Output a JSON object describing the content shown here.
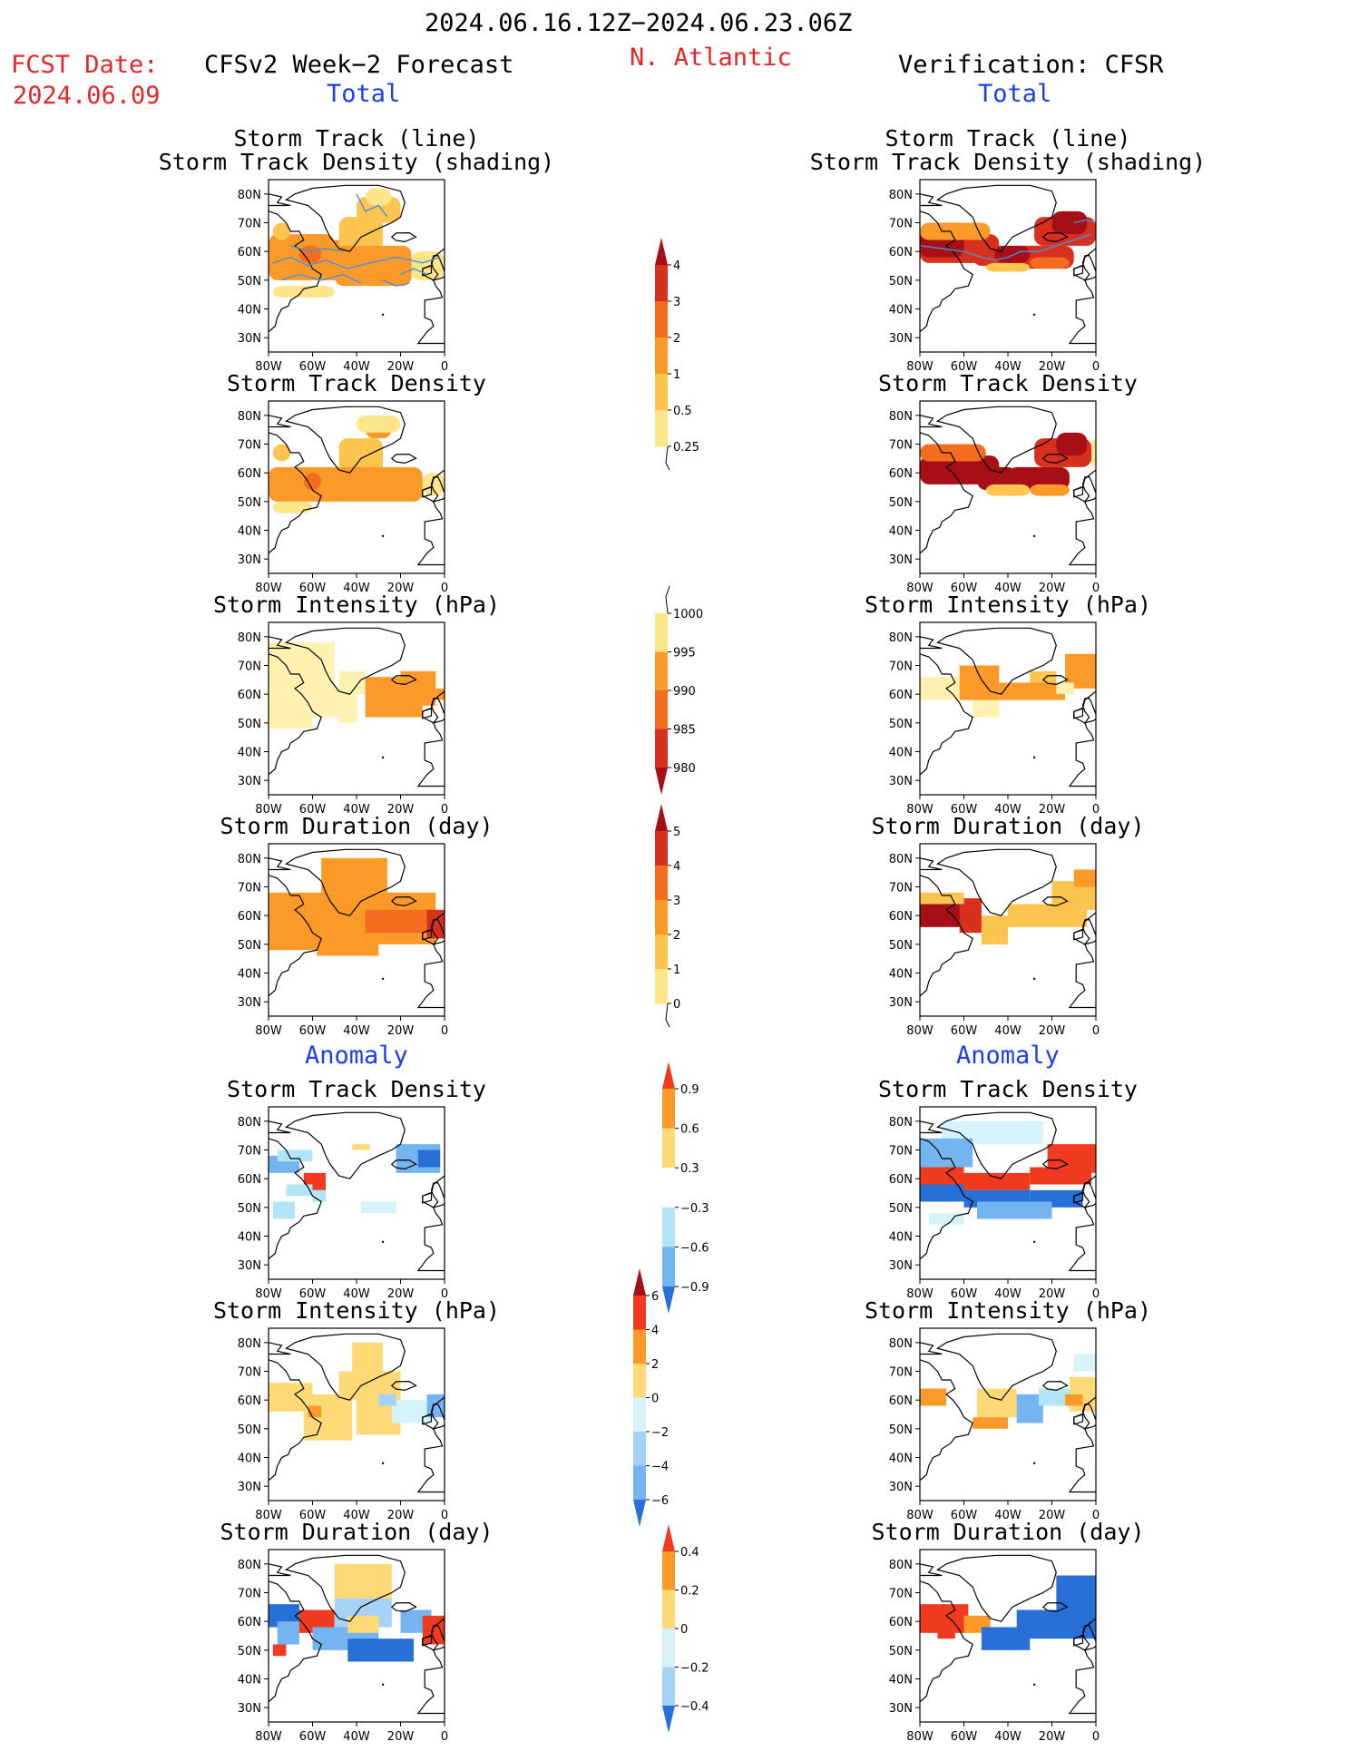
{
  "header": {
    "period": "2024.06.16.12Z−2024.06.23.06Z",
    "fcst_date_label": "FCST Date:",
    "fcst_date": "2024.06.09",
    "forecast_label": "CFSv2 Week−2 Forecast",
    "region": "N. Atlantic",
    "verification_label": "Verification: CFSR",
    "total_label": "Total",
    "anomaly_label": "Anomaly"
  },
  "axes": {
    "lon_ticks": [
      "80W",
      "60W",
      "40W",
      "20W",
      "0"
    ],
    "lat_ticks": [
      "80N",
      "70N",
      "60N",
      "50N",
      "40N",
      "30N"
    ]
  },
  "panels": {
    "left": [
      {
        "title1": "Storm Track (line)",
        "title2": "Storm Track Density (shading)"
      },
      {
        "title1": "Storm Track Density"
      },
      {
        "title1": "Storm Intensity (hPa)"
      },
      {
        "title1": "Storm Duration (day)"
      },
      {
        "title1": "Storm Track Density"
      },
      {
        "title1": "Storm Intensity (hPa)"
      },
      {
        "title1": "Storm Duration (day)"
      }
    ],
    "right": [
      {
        "title1": "Storm Track (line)",
        "title2": "Storm Track Density (shading)"
      },
      {
        "title1": "Storm Track Density"
      },
      {
        "title1": "Storm Intensity (hPa)"
      },
      {
        "title1": "Storm Duration (day)"
      },
      {
        "title1": "Storm Track Density"
      },
      {
        "title1": "Storm Intensity (hPa)"
      },
      {
        "title1": "Storm Duration (day)"
      }
    ]
  },
  "colorbars": [
    {
      "labels": [
        "4",
        "3",
        "2",
        "1",
        "0.5",
        "0.25"
      ],
      "colors": [
        "#a50f15",
        "#d7301f",
        "#f46d1f",
        "#fb9a29",
        "#fdc44f",
        "#fee58a",
        "#fff7bc"
      ]
    },
    {
      "labels": [
        "1000",
        "995",
        "990",
        "985",
        "980"
      ],
      "colors": [
        "#fff7bc",
        "#fee58a",
        "#fb9a29",
        "#f46d1f",
        "#d7301f",
        "#a50f15"
      ]
    },
    {
      "labels": [
        "5",
        "4",
        "3",
        "2",
        "1",
        "0"
      ],
      "colors": [
        "#a50f15",
        "#d7301f",
        "#f46d1f",
        "#fb9a29",
        "#fdc44f",
        "#fee58a",
        "#fff7bc"
      ]
    },
    {
      "labels": [
        "0.9",
        "0.6",
        "0.3",
        "−0.3",
        "−0.6",
        "−0.9"
      ],
      "colors": [
        "#f03b20",
        "#fb9a29",
        "#fed976",
        "#ffffff",
        "#b3e5f8",
        "#74b4f0",
        "#2870d8"
      ]
    },
    {
      "labels": [
        "6",
        "4",
        "2",
        "0",
        "−2",
        "−4",
        "−6"
      ],
      "colors": [
        "#a50f15",
        "#f03b20",
        "#fb9a29",
        "#fed976",
        "#d6f2fb",
        "#a6d3f5",
        "#74b4f0",
        "#2870d8"
      ]
    },
    {
      "labels": [
        "0.4",
        "0.2",
        "0",
        "−0.2",
        "−0.4"
      ],
      "colors": [
        "#f03b20",
        "#fb9a29",
        "#fed976",
        "#d6f2fb",
        "#a6d3f5",
        "#2870d8"
      ]
    }
  ],
  "colors": {
    "title_red": "#e8262a",
    "label_blue": "#1d3cf5"
  }
}
